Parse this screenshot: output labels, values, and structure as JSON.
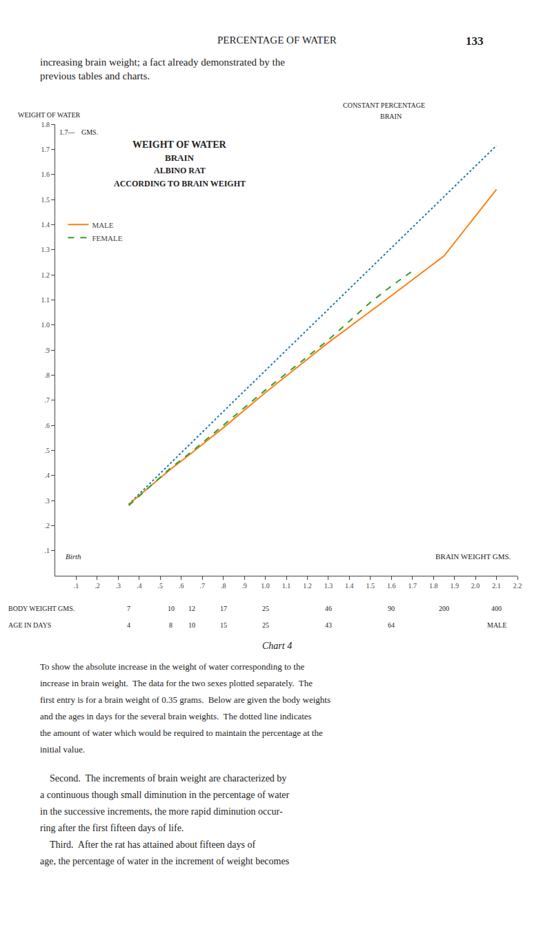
{
  "chart_data": {
    "type": "line",
    "title": [
      "WEIGHT OF WATER",
      "BRAIN",
      "ALBINO RAT",
      "ACCORDING TO BRAIN WEIGHT"
    ],
    "xlabel": "BRAIN WEIGHT GMS.",
    "ylabel": "WEIGHT OF WATER",
    "ylabel2": "GMS.",
    "annotations": {
      "header": "PERCENTAGE OF WATER",
      "page_number": "133",
      "paragraph": [
        "increasing brain weight; a fact already demonstrated by the",
        "previous tables and charts."
      ],
      "top_mark": "1.7—",
      "top_right_label1": "CONSTANT PERCENTAGE",
      "top_right_label2": "BRAIN",
      "birth_label": "Birth",
      "chart_label": "Chart 4",
      "caption": [
        "To show the absolute increase in the weight of water corresponding to the",
        "increase in brain weight.  The data for the two sexes plotted separately.  The",
        "first entry is for a brain weight of 0.35 grams.  Below are given the body weights",
        "and the ages in days for the several brain weights.  The dotted line indicates",
        "the amount of water which would be required to maintain the percentage at the",
        "initial value."
      ],
      "paragraph2": [
        "    Second.  The increments of brain weight are characterized by",
        "a continuous though small diminution in the percentage of water",
        "in the successive increments, the more rapid diminution occur-",
        "ring after the first fifteen days of life.",
        "    Third.  After the rat has attained about fifteen days of",
        "age, the percentage of water in the increment of weight becomes"
      ]
    },
    "secondary_rows": [
      {
        "label": "BODY WEIGHT GMS.",
        "x": [
          0.35,
          0.55,
          0.65,
          0.8,
          1.0,
          1.3,
          1.6,
          1.85,
          2.1
        ],
        "values": [
          7,
          10,
          12,
          17,
          25,
          46,
          90,
          200,
          400
        ]
      },
      {
        "label": "AGE IN DAYS",
        "x": [
          0.35,
          0.55,
          0.65,
          0.8,
          1.0,
          1.3,
          1.6,
          2.1
        ],
        "values": [
          4,
          8,
          10,
          15,
          25,
          43,
          64,
          "MALE"
        ]
      }
    ],
    "series": [
      {
        "line_style": "dot",
        "x": [
          0.35,
          0.55,
          0.65,
          0.8,
          1.0,
          1.3,
          1.5,
          1.65,
          1.75,
          1.85,
          2.1
        ],
        "values": [
          0.285,
          0.45,
          0.53,
          0.655,
          0.818,
          1.063,
          1.225,
          1.348,
          1.43,
          1.512,
          1.715
        ]
      },
      {
        "name": "MALE",
        "line_style": "solid",
        "x": [
          0.35,
          0.55,
          0.65,
          0.8,
          1.0,
          1.3,
          1.55,
          1.75,
          1.85,
          2.1
        ],
        "values": [
          0.285,
          0.425,
          0.49,
          0.59,
          0.73,
          0.93,
          1.085,
          1.21,
          1.275,
          1.54
        ]
      },
      {
        "name": "FEMALE",
        "line_style": "dash",
        "x": [
          0.35,
          0.55,
          0.65,
          0.8,
          1.0,
          1.3,
          1.5,
          1.6,
          1.7
        ],
        "values": [
          0.28,
          0.43,
          0.495,
          0.6,
          0.74,
          0.94,
          1.09,
          1.155,
          1.215
        ]
      }
    ],
    "xlim": [
      0,
      2.2
    ],
    "ylim": [
      0,
      1.8
    ],
    "xticks": [
      {
        "value": 0.1,
        "label": ".1"
      },
      {
        "value": 0.2,
        "label": ".2"
      },
      {
        "value": 0.3,
        "label": ".3"
      },
      {
        "value": 0.4,
        "label": ".4"
      },
      {
        "value": 0.5,
        "label": ".5"
      },
      {
        "value": 0.6,
        "label": ".6"
      },
      {
        "value": 0.7,
        "label": ".7"
      },
      {
        "value": 0.8,
        "label": ".8"
      },
      {
        "value": 0.9,
        "label": ".9"
      },
      {
        "value": 1.0,
        "label": "1.0"
      },
      1.1,
      1.2,
      1.3,
      1.4,
      1.5,
      1.6,
      1.7,
      1.8,
      1.9,
      {
        "value": 2.0,
        "label": "2.0"
      },
      2.1,
      2.2
    ],
    "yticks": [
      {
        "value": 0.1,
        "label": ".1"
      },
      {
        "value": 0.2,
        "label": ".2"
      },
      {
        "value": 0.3,
        "label": ".3"
      },
      {
        "value": 0.4,
        "label": ".4"
      },
      {
        "value": 0.5,
        "label": ".5"
      },
      {
        "value": 0.6,
        "label": ".6"
      },
      {
        "value": 0.7,
        "label": ".7"
      },
      {
        "value": 0.8,
        "label": ".8"
      },
      {
        "value": 0.9,
        "label": ".9"
      },
      {
        "value": 1.0,
        "label": "1.0"
      },
      1.1,
      1.2,
      1.3,
      1.4,
      1.5,
      1.6,
      1.7,
      1.8
    ],
    "grid": false,
    "legend": "upper left"
  }
}
